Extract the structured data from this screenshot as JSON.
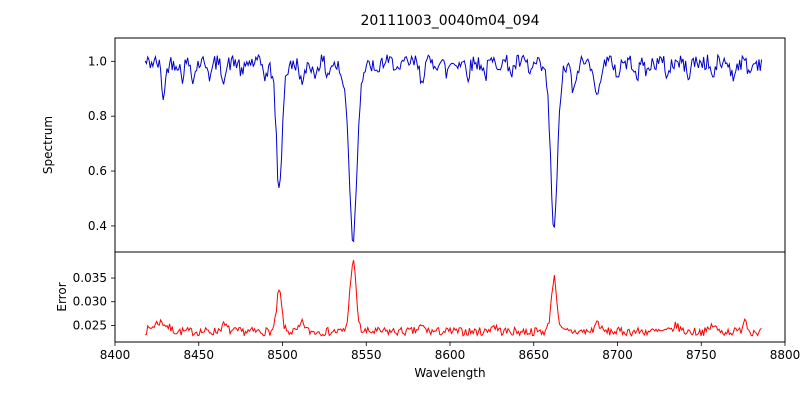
{
  "title": "20111003_0040m04_094",
  "axes": {
    "xlabel": "Wavelength",
    "xlim": [
      8400,
      8800
    ],
    "xticks": [
      8400,
      8450,
      8500,
      8550,
      8600,
      8650,
      8700,
      8750,
      8800
    ],
    "xtick_labels": [
      "8400",
      "8450",
      "8500",
      "8550",
      "8600",
      "8650",
      "8700",
      "8750",
      "8800"
    ],
    "grid": false,
    "legend": "none"
  },
  "chart_data": [
    {
      "type": "line",
      "name": "spectrum",
      "color": "#0000cd",
      "ylabel": "Spectrum",
      "ylim": [
        0.305,
        1.085
      ],
      "yticks": [
        0.4,
        0.6,
        0.8,
        1.0
      ],
      "ytick_labels": [
        "0.4",
        "0.6",
        "0.8",
        "1.0"
      ],
      "x_range": [
        8418,
        8786
      ],
      "continuum_level": 1.0,
      "main_absorption_lines": [
        {
          "center": 8498,
          "min_flux": 0.52
        },
        {
          "center": 8542,
          "min_flux": 0.35
        },
        {
          "center": 8662,
          "min_flux": 0.38
        }
      ],
      "series_spec": {
        "seed": 42,
        "n_points": 480,
        "x_start": 8418,
        "x_end": 8786,
        "baseline": 0.995,
        "noise": 0.03,
        "lines": [
          {
            "center": 8498.02,
            "amp": -0.43,
            "sigma": 1.6
          },
          {
            "center": 8498.02,
            "amp": -0.04,
            "sigma": 5.0
          },
          {
            "center": 8542.09,
            "amp": -0.59,
            "sigma": 2.2
          },
          {
            "center": 8542.09,
            "amp": -0.05,
            "sigma": 6.0
          },
          {
            "center": 8662.14,
            "amp": -0.56,
            "sigma": 2.0
          },
          {
            "center": 8662.14,
            "amp": -0.045,
            "sigma": 5.5
          },
          {
            "center": 8429,
            "amp": -0.12,
            "sigma": 1.2
          },
          {
            "center": 8440,
            "amp": -0.05,
            "sigma": 1.0
          },
          {
            "center": 8447,
            "amp": -0.06,
            "sigma": 1.0
          },
          {
            "center": 8457,
            "amp": -0.05,
            "sigma": 1.0
          },
          {
            "center": 8465,
            "amp": -0.05,
            "sigma": 1.4
          },
          {
            "center": 8476,
            "amp": -0.05,
            "sigma": 1.0
          },
          {
            "center": 8490,
            "amp": -0.04,
            "sigma": 1.0
          },
          {
            "center": 8512,
            "amp": -0.09,
            "sigma": 1.2
          },
          {
            "center": 8519,
            "amp": -0.05,
            "sigma": 1.0
          },
          {
            "center": 8527,
            "amp": -0.04,
            "sigma": 1.0
          },
          {
            "center": 8536,
            "amp": -0.04,
            "sigma": 1.0
          },
          {
            "center": 8556,
            "amp": -0.05,
            "sigma": 1.0
          },
          {
            "center": 8570,
            "amp": -0.04,
            "sigma": 1.0
          },
          {
            "center": 8583,
            "amp": -0.06,
            "sigma": 1.2
          },
          {
            "center": 8598,
            "amp": -0.04,
            "sigma": 1.0
          },
          {
            "center": 8611,
            "amp": -0.04,
            "sigma": 1.0
          },
          {
            "center": 8621,
            "amp": -0.05,
            "sigma": 1.0
          },
          {
            "center": 8637,
            "amp": -0.04,
            "sigma": 1.0
          },
          {
            "center": 8648,
            "amp": -0.04,
            "sigma": 1.0
          },
          {
            "center": 8674,
            "amp": -0.11,
            "sigma": 1.3
          },
          {
            "center": 8688,
            "amp": -0.14,
            "sigma": 1.3
          },
          {
            "center": 8700,
            "amp": -0.05,
            "sigma": 1.0
          },
          {
            "center": 8712,
            "amp": -0.05,
            "sigma": 1.0
          },
          {
            "center": 8718,
            "amp": -0.04,
            "sigma": 1.0
          },
          {
            "center": 8730,
            "amp": -0.05,
            "sigma": 1.0
          },
          {
            "center": 8742,
            "amp": -0.05,
            "sigma": 1.0
          },
          {
            "center": 8757,
            "amp": -0.06,
            "sigma": 1.0
          },
          {
            "center": 8769,
            "amp": -0.06,
            "sigma": 1.0
          },
          {
            "center": 8779,
            "amp": -0.04,
            "sigma": 1.0
          }
        ]
      }
    },
    {
      "type": "line",
      "name": "error",
      "color": "#ff0000",
      "ylabel": "Error",
      "ylim": [
        0.0215,
        0.0405
      ],
      "yticks": [
        0.025,
        0.03,
        0.035
      ],
      "ytick_labels": [
        "0.025",
        "0.030",
        "0.035"
      ],
      "x_range": [
        8418,
        8786
      ],
      "baseline_level": 0.024,
      "main_error_peaks": [
        {
          "center": 8498,
          "max_error": 0.032
        },
        {
          "center": 8542,
          "max_error": 0.038
        },
        {
          "center": 8662,
          "max_error": 0.035
        }
      ],
      "series_spec": {
        "seed": 7,
        "n_points": 480,
        "x_start": 8418,
        "x_end": 8786,
        "baseline": 0.0237,
        "noise": 0.0009,
        "lines": [
          {
            "center": 8498.02,
            "amp": 0.0085,
            "sigma": 1.5
          },
          {
            "center": 8542.09,
            "amp": 0.0148,
            "sigma": 1.8
          },
          {
            "center": 8662.14,
            "amp": 0.0112,
            "sigma": 1.7
          },
          {
            "center": 8427,
            "amp": 0.002,
            "sigma": 4.0
          },
          {
            "center": 8465,
            "amp": 0.0013,
            "sigma": 2.0
          },
          {
            "center": 8512,
            "amp": 0.0018,
            "sigma": 1.5
          },
          {
            "center": 8583,
            "amp": 0.001,
            "sigma": 2.0
          },
          {
            "center": 8626,
            "amp": 0.0012,
            "sigma": 2.0
          },
          {
            "center": 8688,
            "amp": 0.002,
            "sigma": 1.5
          },
          {
            "center": 8735,
            "amp": 0.0012,
            "sigma": 2.0
          },
          {
            "center": 8757,
            "amp": 0.0014,
            "sigma": 1.5
          },
          {
            "center": 8776,
            "amp": 0.0028,
            "sigma": 1.2
          }
        ]
      }
    }
  ]
}
